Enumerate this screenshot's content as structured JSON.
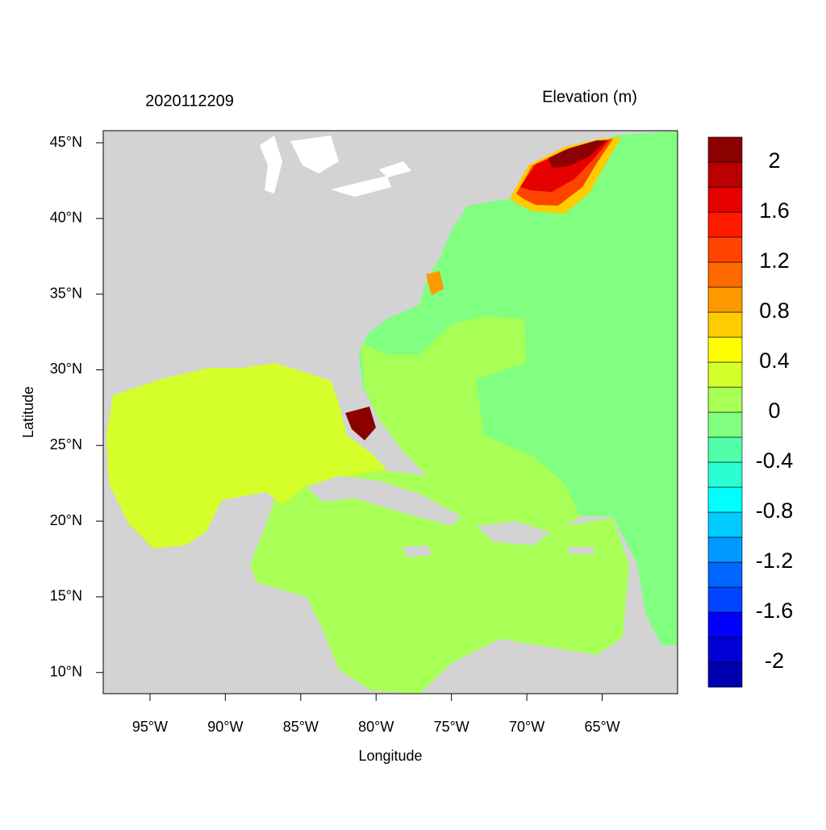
{
  "chart_data": {
    "type": "map",
    "title": "2020112209",
    "subtitle": "Elevation (m)",
    "x_label": "Longitude",
    "y_label": "Latitude",
    "xlim": [
      -98.1,
      -60
    ],
    "ylim": [
      8.6,
      45.8
    ],
    "xticks": [
      {
        "value": -95,
        "label": "95°W"
      },
      {
        "value": -90,
        "label": "90°W"
      },
      {
        "value": -85,
        "label": "85°W"
      },
      {
        "value": -80,
        "label": "80°W"
      },
      {
        "value": -75,
        "label": "75°W"
      },
      {
        "value": -70,
        "label": "70°W"
      },
      {
        "value": -65,
        "label": "65°W"
      }
    ],
    "yticks": [
      {
        "value": 10,
        "label": "10°N"
      },
      {
        "value": 15,
        "label": "15°N"
      },
      {
        "value": 20,
        "label": "20°N"
      },
      {
        "value": 25,
        "label": "25°N"
      },
      {
        "value": 30,
        "label": "30°N"
      },
      {
        "value": 35,
        "label": "35°N"
      },
      {
        "value": 40,
        "label": "40°N"
      },
      {
        "value": 45,
        "label": "45°N"
      }
    ],
    "colorbar": {
      "lim": [
        -2.2,
        2.2
      ],
      "ticks": [
        2,
        1.6,
        1.2,
        0.8,
        0.4,
        0,
        -0.4,
        -0.8,
        -1.2,
        -1.6,
        -2
      ],
      "colors": [
        "#0000b0",
        "#0000d6",
        "#0000ff",
        "#0044ff",
        "#0066ff",
        "#0099ff",
        "#00ccff",
        "#00ffff",
        "#2affd4",
        "#50ffa8",
        "#80ff80",
        "#a8ff55",
        "#d4ff2a",
        "#ffff00",
        "#ffcc00",
        "#ff9900",
        "#ff6a00",
        "#ff4400",
        "#ff1a00",
        "#e60000",
        "#bb0000",
        "#8b0000"
      ]
    }
  }
}
